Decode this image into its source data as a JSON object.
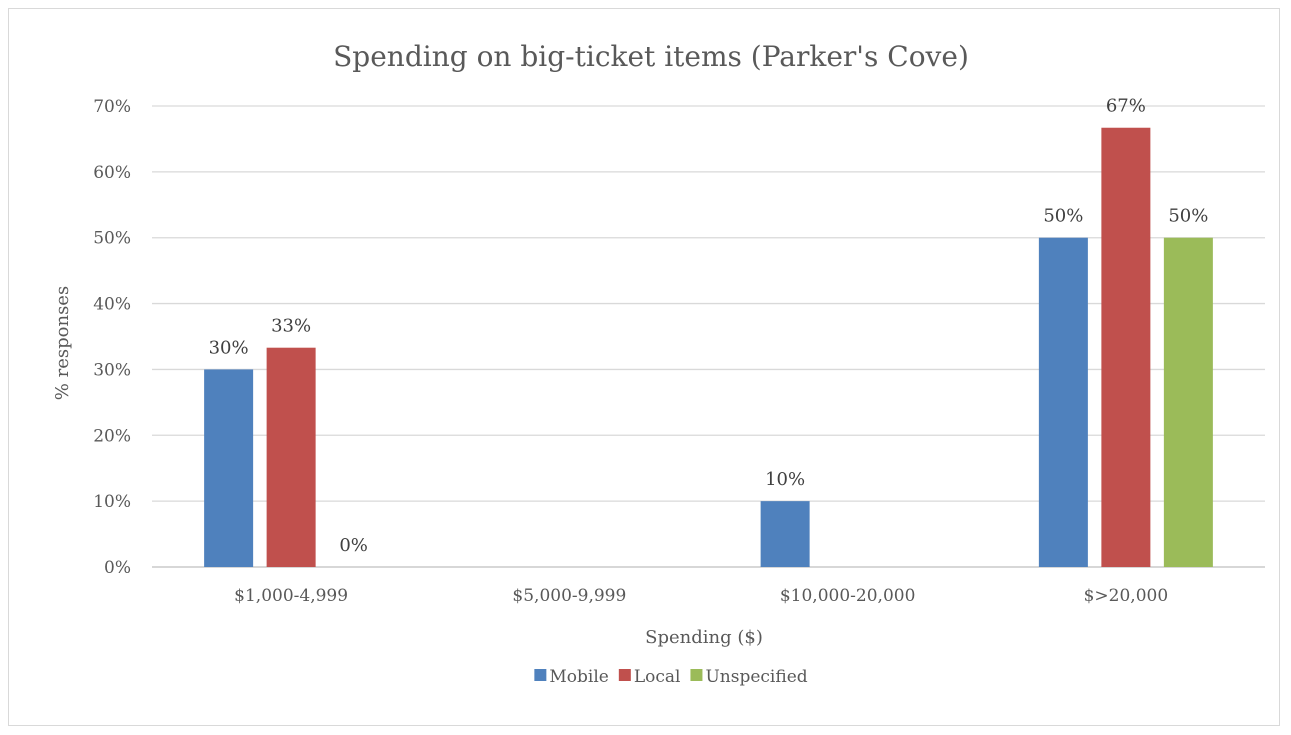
{
  "chart_data": {
    "type": "bar",
    "title": "Spending on big-ticket items (Parker's Cove)",
    "xlabel": "Spending ($)",
    "ylabel": "% responses",
    "categories": [
      "$1,000-4,999",
      "$5,000-9,999",
      "$10,000-20,000",
      "$>20,000"
    ],
    "series": [
      {
        "name": "Mobile",
        "color": "#4f81bd",
        "values": [
          30,
          null,
          10,
          50
        ],
        "labels": [
          "30%",
          "",
          "10%",
          "50%"
        ]
      },
      {
        "name": "Local",
        "color": "#c0504d",
        "values": [
          33.3,
          null,
          null,
          66.7
        ],
        "labels": [
          "33%",
          "",
          "",
          "67%"
        ]
      },
      {
        "name": "Unspecified",
        "color": "#9bbb59",
        "values": [
          0,
          null,
          null,
          50
        ],
        "labels": [
          "0%",
          "",
          "",
          "50%"
        ]
      }
    ],
    "ylim": [
      0,
      70
    ],
    "yticks": [
      "0%",
      "10%",
      "20%",
      "30%",
      "40%",
      "50%",
      "60%",
      "70%"
    ],
    "grid": true,
    "legend": "bottom"
  }
}
